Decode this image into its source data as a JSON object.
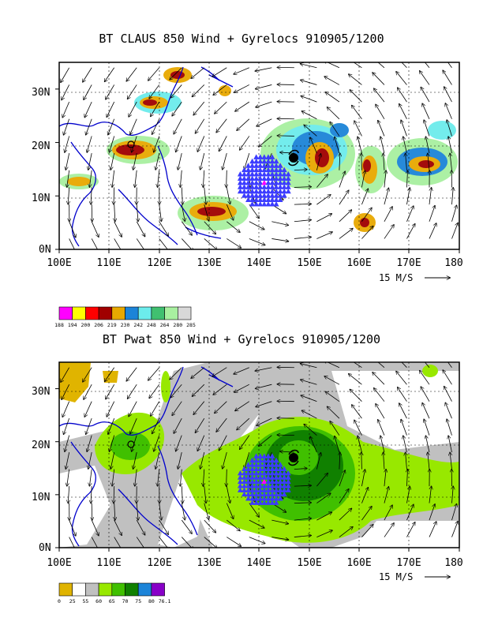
{
  "top_panel": {
    "title": "BT CLAUS 850 Wind + Gyrelocs 910905/1200",
    "y_tick_labels": [
      "30N",
      "20N",
      "10N",
      "0N"
    ],
    "x_tick_labels": [
      "100E",
      "110E",
      "120E",
      "130E",
      "140E",
      "150E",
      "160E",
      "170E",
      "180"
    ],
    "vector_ref": "15 M/S",
    "colorbar_labels": [
      "188",
      "194",
      "200",
      "206",
      "219",
      "230",
      "242",
      "248",
      "264",
      "280",
      "285"
    ],
    "colorbar_colors": [
      "#ff00ff",
      "#ffff00",
      "#ff0000",
      "#a00000",
      "#e8a800",
      "#1c84d8",
      "#6cecec",
      "#40c070",
      "#a8f0a0",
      "#d8d8d8"
    ]
  },
  "bottom_panel": {
    "title": "BT Pwat 850 Wind + Gyrelocs 910905/1200",
    "y_tick_labels": [
      "30N",
      "20N",
      "10N",
      "0N"
    ],
    "x_tick_labels": [
      "100E",
      "110E",
      "120E",
      "130E",
      "140E",
      "150E",
      "160E",
      "170E",
      "180"
    ],
    "vector_ref": "15 M/S",
    "colorbar_labels": [
      "0",
      "25",
      "55",
      "60",
      "65",
      "70",
      "75",
      "80",
      "76.1"
    ],
    "colorbar_colors": [
      "#e0b400",
      "#ffffff",
      "#c0c0c0",
      "#98e800",
      "#40c000",
      "#108000",
      "#1c84d8",
      "#8800c8"
    ]
  },
  "map": {
    "lon_range": [
      100,
      180
    ],
    "lat_range": [
      0,
      35
    ],
    "gyre_center": {
      "lon": 141,
      "lat": 12.5
    },
    "storm_center": {
      "lon": 147,
      "lat": 17.5
    },
    "second_storm": {
      "lon": 114,
      "lat": 20
    }
  }
}
